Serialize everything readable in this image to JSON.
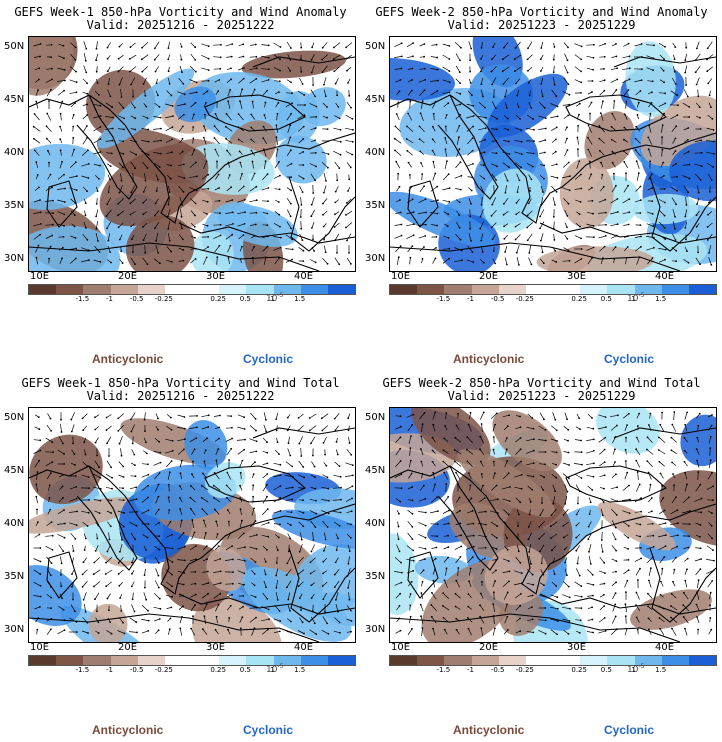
{
  "colors": {
    "colorbar": [
      "#5b3a2e",
      "#7d5446",
      "#a07e6f",
      "#c4a596",
      "#e8d3cb",
      "#ffffff",
      "#ffffff",
      "#d6f2fa",
      "#a9e4f4",
      "#6fb8ee",
      "#3d8ee6",
      "#1a5fd6"
    ],
    "anticyclonic": "#7a4a3a",
    "cyclonic": "#2266cc"
  },
  "panels": [
    {
      "title": "GEFS Week-1 850-hPa Vorticity and Wind Anomaly",
      "valid": "Valid: 20251216 - 20251222",
      "seed": 11,
      "bias": 0.0
    },
    {
      "title": "GEFS Week-2 850-hPa Vorticity and Wind Anomaly",
      "valid": "Valid: 20251223 - 20251229",
      "seed": 23,
      "bias": 0.6
    },
    {
      "title": "GEFS Week-1 850-hPa Vorticity and Wind Total",
      "valid": "Valid: 20251216 - 20251222",
      "seed": 37,
      "bias": 0.3
    },
    {
      "title": "GEFS Week-2 850-hPa Vorticity and Wind Total",
      "valid": "Valid: 20251223 - 20251229",
      "seed": 53,
      "bias": 0.4
    }
  ],
  "axes": {
    "lat_labels": [
      "50N",
      "45N",
      "40N",
      "35N",
      "30N"
    ],
    "lon_labels": [
      "10E",
      "20E",
      "30E",
      "40E"
    ]
  },
  "colorbar_ticks": [
    "-1.5",
    "-1",
    "-0.5",
    "-0.25",
    "0.25",
    "0.5",
    "1",
    "1.5"
  ],
  "colorbar_scale": "10",
  "colorbar_exponent": "-5",
  "legend": {
    "anticyclonic": "Anticyclonic",
    "cyclonic": "Cyclonic"
  }
}
